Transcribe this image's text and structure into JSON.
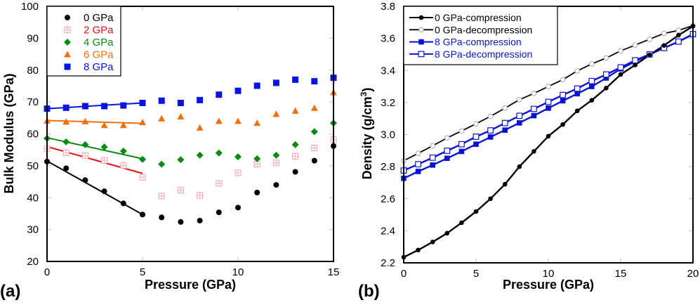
{
  "chart_data": [
    {
      "panel_label": "(a)",
      "type": "scatter",
      "title": "",
      "xlabel": "Pressure (GPa)",
      "ylabel": "Bulk Modulus (GPa)",
      "xlim": [
        0,
        15
      ],
      "ylim": [
        20,
        100
      ],
      "xticks": [
        0,
        5,
        10,
        15
      ],
      "yticks": [
        20,
        30,
        40,
        50,
        60,
        70,
        80,
        90,
        100
      ],
      "grid": false,
      "legend_position": "top-left",
      "x": [
        0,
        1,
        2,
        3,
        4,
        5,
        6,
        7,
        8,
        9,
        10,
        11,
        12,
        13,
        14,
        15
      ],
      "series": [
        {
          "name": "0 GPa",
          "color": "#000000",
          "marker": "circle",
          "values": [
            51.3,
            49.2,
            45.5,
            42.0,
            38.2,
            34.7,
            33.8,
            32.4,
            32.8,
            35.4,
            36.9,
            41.6,
            44.0,
            48.1,
            51.6,
            56.2
          ],
          "fit_line": {
            "x": [
              0,
              5
            ],
            "y": [
              51.5,
              34.7
            ],
            "color": "#000000"
          }
        },
        {
          "name": "2 GPa",
          "color": "#e8101a",
          "marker_color": "#f4a0a4",
          "marker": "open-square-grid",
          "values": [
            55.3,
            54.1,
            53.2,
            51.7,
            50.1,
            46.4,
            40.5,
            42.3,
            40.7,
            44.5,
            47.8,
            50.5,
            50.9,
            53.0,
            55.6,
            58.2
          ],
          "fit_line": {
            "x": [
              0,
              5
            ],
            "y": [
              56.0,
              47.6
            ],
            "color": "#e8101a"
          }
        },
        {
          "name": "4 GPa",
          "color": "#0a8a12",
          "marker": "diamond",
          "values": [
            58.6,
            57.5,
            56.6,
            55.9,
            54.6,
            52.0,
            50.5,
            51.9,
            53.3,
            54.0,
            52.8,
            52.2,
            53.3,
            56.6,
            60.7,
            63.4
          ],
          "fit_line": {
            "x": [
              0,
              5
            ],
            "y": [
              58.8,
              52.2
            ],
            "color": "#0a8a12"
          }
        },
        {
          "name": "6 GPa",
          "color": "#f07010",
          "marker": "triangle",
          "values": [
            64.1,
            63.8,
            63.9,
            62.7,
            62.7,
            63.6,
            64.8,
            65.4,
            61.9,
            64.0,
            64.0,
            63.4,
            66.2,
            67.2,
            68.1,
            73.0
          ],
          "fit_line": {
            "x": [
              0,
              5
            ],
            "y": [
              64.2,
              63.3
            ],
            "color": "#f07010"
          }
        },
        {
          "name": "8 GPa",
          "color": "#0a14e0",
          "marker": "square",
          "values": [
            67.9,
            68.2,
            68.7,
            68.7,
            68.9,
            69.7,
            70.4,
            69.7,
            70.6,
            72.3,
            73.5,
            75.1,
            76.0,
            77.0,
            76.5,
            77.6
          ],
          "fit_line": {
            "x": [
              0,
              5
            ],
            "y": [
              67.9,
              69.7
            ],
            "color": "#0a14e0"
          }
        }
      ]
    },
    {
      "panel_label": "(b)",
      "type": "line",
      "title": "",
      "xlabel": "Pressure (GPa)",
      "ylabel": "Density (g/cm3)",
      "ylabel_base": "Density (g/cm",
      "ylabel_sup": "3",
      "ylabel_tail": ")",
      "xlim": [
        0,
        20
      ],
      "ylim": [
        2.2,
        3.8
      ],
      "xticks": [
        0,
        5,
        10,
        15,
        20
      ],
      "yticks": [
        "2.2",
        "2.4",
        "2.6",
        "2.8",
        "3.0",
        "3.2",
        "3.4",
        "3.6",
        "3.8"
      ],
      "grid": false,
      "legend_position": "top-left",
      "x": [
        0,
        1,
        2,
        3,
        4,
        5,
        6,
        7,
        8,
        9,
        10,
        11,
        12,
        13,
        14,
        15,
        16,
        17,
        18,
        19,
        20
      ],
      "series": [
        {
          "name": "0 GPa-compression",
          "color": "#000000",
          "marker": "filled-circle",
          "line_width": "thick",
          "values": [
            2.235,
            2.28,
            2.33,
            2.385,
            2.45,
            2.52,
            2.6,
            2.69,
            2.8,
            2.895,
            2.99,
            3.063,
            3.148,
            3.214,
            3.29,
            3.375,
            3.434,
            3.497,
            3.556,
            3.62,
            3.676
          ]
        },
        {
          "name": "0 GPa-decompression",
          "color": "#000000",
          "marker_color": "#a8a8a8",
          "marker": "open-circle",
          "line_width": "thin",
          "values": [
            2.837,
            2.883,
            2.93,
            2.979,
            3.023,
            3.067,
            3.114,
            3.165,
            3.218,
            3.257,
            3.3,
            3.343,
            3.397,
            3.441,
            3.478,
            3.522,
            3.558,
            3.595,
            3.631,
            3.65,
            3.68
          ]
        },
        {
          "name": "8 GPa-compression",
          "color": "#0a14d0",
          "marker": "filled-square",
          "line_width": "thick",
          "values": [
            2.727,
            2.77,
            2.81,
            2.852,
            2.895,
            2.94,
            2.985,
            3.028,
            3.073,
            3.118,
            3.165,
            3.211,
            3.255,
            3.3,
            3.353,
            3.41,
            3.455,
            3.5,
            3.54,
            3.58,
            3.624
          ]
        },
        {
          "name": "8 GPa-decompression",
          "color": "#0a14d0",
          "marker": "open-square",
          "line_width": "thick",
          "values": [
            2.776,
            2.815,
            2.856,
            2.899,
            2.94,
            2.987,
            3.026,
            3.072,
            3.117,
            3.16,
            3.204,
            3.247,
            3.287,
            3.334,
            3.375,
            3.419,
            3.463,
            3.5,
            3.54,
            3.58,
            3.627
          ]
        }
      ]
    }
  ]
}
